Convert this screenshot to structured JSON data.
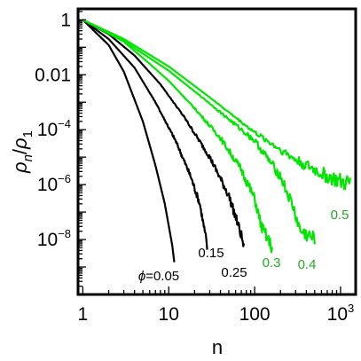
{
  "chart_data": {
    "type": "line",
    "x_scale": "log",
    "y_scale": "log",
    "xlabel": "n",
    "ylabel": {
      "base": "ρ",
      "num_sub": "n",
      "den_sub": "1"
    },
    "xlim": [
      0.88,
      1500
    ],
    "ylim": [
      1e-10,
      2.5
    ],
    "x_ticks": [
      {
        "value": 1,
        "label": "1"
      },
      {
        "value": 10,
        "label": "10"
      },
      {
        "value": 100,
        "label": "100"
      },
      {
        "value": 1000,
        "label": "10",
        "sup": "3"
      }
    ],
    "y_ticks": [
      {
        "value": 1,
        "label": "1"
      },
      {
        "value": 0.01,
        "label": "0.01"
      },
      {
        "value": 0.0001,
        "label": "10",
        "sup": "−4"
      },
      {
        "value": 1e-06,
        "label": "10",
        "sup": "−6"
      },
      {
        "value": 1e-08,
        "label": "10",
        "sup": "−8"
      }
    ],
    "colors": {
      "black": "#000000",
      "green": "#00e600",
      "label_green": "#22aa22"
    },
    "series": [
      {
        "label": "ϕ=0.05",
        "color": "#000000",
        "noise": 0.0,
        "points": [
          [
            1,
            1
          ],
          [
            2,
            0.12
          ],
          [
            3,
            0.013
          ],
          [
            5,
            0.0002
          ],
          [
            7,
            5e-06
          ],
          [
            9,
            2e-07
          ],
          [
            11,
            6e-09
          ],
          [
            11.6,
            1.5e-09
          ]
        ]
      },
      {
        "label": "0.15",
        "color": "#000000",
        "noise": 0.15,
        "points": [
          [
            1,
            1
          ],
          [
            2,
            0.2
          ],
          [
            4,
            0.018
          ],
          [
            7,
            0.001
          ],
          [
            12,
            4e-05
          ],
          [
            18,
            2e-06
          ],
          [
            23,
            2e-07
          ],
          [
            27,
            1.2e-08
          ],
          [
            28,
            5e-09
          ]
        ]
      },
      {
        "label": "0.25",
        "color": "#000000",
        "noise": 0.2,
        "points": [
          [
            1,
            1
          ],
          [
            2,
            0.3
          ],
          [
            4,
            0.05
          ],
          [
            8,
            0.0045
          ],
          [
            15,
            0.0003
          ],
          [
            30,
            1e-05
          ],
          [
            50,
            4e-07
          ],
          [
            65,
            3e-08
          ],
          [
            72,
            1e-08
          ],
          [
            75,
            5e-09
          ]
        ]
      },
      {
        "label": "0.3",
        "color": "#00e600",
        "noise": 0.25,
        "points": [
          [
            1,
            1
          ],
          [
            3,
            0.16
          ],
          [
            6,
            0.025
          ],
          [
            10,
            0.006
          ],
          [
            20,
            0.0006
          ],
          [
            40,
            5e-05
          ],
          [
            70,
            3.5e-06
          ],
          [
            100,
            3e-07
          ],
          [
            120,
            3e-08
          ],
          [
            160,
            5e-09
          ]
        ]
      },
      {
        "label": "0.4",
        "color": "#00e600",
        "noise": 0.3,
        "points": [
          [
            1,
            1
          ],
          [
            3,
            0.17
          ],
          [
            10,
            0.014
          ],
          [
            30,
            0.0009
          ],
          [
            100,
            4e-05
          ],
          [
            200,
            2e-06
          ],
          [
            280,
            1.5e-07
          ],
          [
            340,
            2e-08
          ],
          [
            500,
            1e-08
          ]
        ]
      },
      {
        "label": "0.5",
        "color": "#00e600",
        "noise": 0.35,
        "points": [
          [
            1,
            1
          ],
          [
            3,
            0.2
          ],
          [
            10,
            0.02
          ],
          [
            30,
            0.0015
          ],
          [
            100,
            8e-05
          ],
          [
            300,
            8e-06
          ],
          [
            600,
            2.5e-06
          ],
          [
            1000,
            1.2e-06
          ],
          [
            1300,
            1e-06
          ]
        ]
      }
    ]
  }
}
